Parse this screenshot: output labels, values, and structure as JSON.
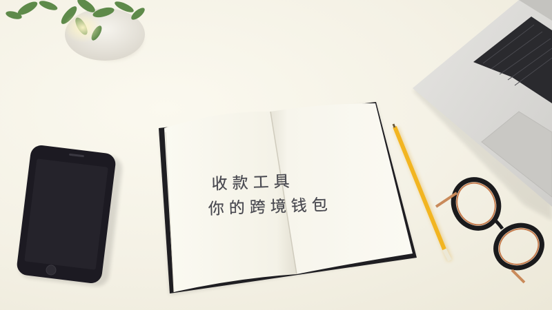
{
  "scene": {
    "objects": [
      "plant-pot",
      "smartphone",
      "open-notebook",
      "pencil",
      "glasses",
      "laptop"
    ]
  },
  "notebook": {
    "line1": "收款工具",
    "line2": "你的跨境钱包"
  },
  "colors": {
    "background": "#f3f0e4",
    "pencil": "#f2b521",
    "phone": "#1c1a22",
    "laptop": "#d9d8d5",
    "plant": "#5e8a4a"
  }
}
